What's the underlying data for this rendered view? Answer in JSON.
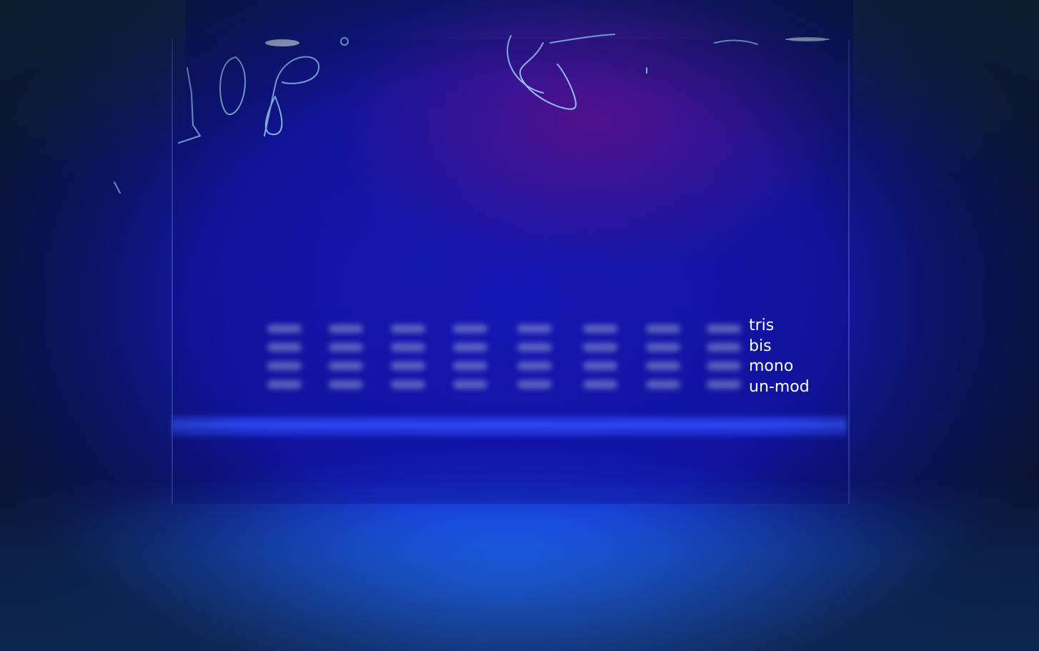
{
  "image": {
    "description_hidden": true
  },
  "plate": {
    "handwritten_left": "10P",
    "handwritten_middle": "5",
    "lane_count": 8
  },
  "band_labels": {
    "tris": "tris",
    "bis": "bis",
    "mono": "mono",
    "unmod": "un-mod"
  },
  "colors": {
    "background": "#1218a8",
    "glow": "#2a6bff",
    "label_text": "#ffffff",
    "band": "#96a0d2"
  }
}
